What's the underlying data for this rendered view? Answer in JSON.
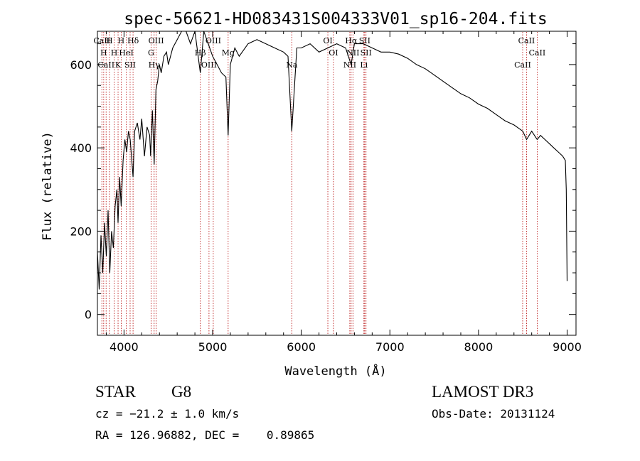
{
  "chart_data": {
    "type": "line",
    "title": "spec-56621-HD083431S004333V01_sp16-204.fits",
    "xlabel": "Wavelength (Å)",
    "ylabel": "Flux (relative)",
    "xlim": [
      3700,
      9100
    ],
    "ylim": [
      -50,
      680
    ],
    "x_ticks": [
      4000,
      5000,
      6000,
      7000,
      8000,
      9000
    ],
    "y_ticks": [
      0,
      200,
      400,
      600
    ],
    "series": [
      {
        "name": "flux",
        "x": [
          3700,
          3720,
          3740,
          3760,
          3780,
          3800,
          3820,
          3840,
          3860,
          3880,
          3900,
          3920,
          3933,
          3950,
          3968,
          3990,
          4010,
          4030,
          4050,
          4070,
          4102,
          4120,
          4150,
          4180,
          4200,
          4230,
          4260,
          4290,
          4300,
          4320,
          4340,
          4360,
          4380,
          4400,
          4420,
          4450,
          4480,
          4500,
          4550,
          4600,
          4650,
          4700,
          4750,
          4800,
          4861,
          4900,
          4950,
          5000,
          5050,
          5100,
          5150,
          5175,
          5200,
          5250,
          5300,
          5400,
          5500,
          5600,
          5700,
          5800,
          5850,
          5893,
          5950,
          6000,
          6100,
          6200,
          6300,
          6400,
          6500,
          6563,
          6600,
          6700,
          6800,
          6900,
          7000,
          7100,
          7200,
          7300,
          7400,
          7500,
          7600,
          7700,
          7800,
          7900,
          8000,
          8100,
          8200,
          8300,
          8400,
          8500,
          8542,
          8600,
          8662,
          8700,
          8800,
          8850,
          8900,
          8950,
          8980,
          8990,
          9000
        ],
        "y": [
          150,
          60,
          190,
          100,
          220,
          140,
          250,
          100,
          200,
          160,
          260,
          300,
          220,
          330,
          260,
          370,
          420,
          390,
          440,
          420,
          330,
          440,
          460,
          420,
          470,
          380,
          450,
          430,
          380,
          490,
          360,
          540,
          560,
          600,
          580,
          620,
          630,
          600,
          640,
          660,
          690,
          700,
          650,
          690,
          580,
          680,
          650,
          620,
          600,
          580,
          570,
          430,
          600,
          640,
          620,
          650,
          660,
          650,
          640,
          630,
          620,
          440,
          640,
          640,
          650,
          630,
          640,
          650,
          640,
          600,
          650,
          650,
          640,
          630,
          630,
          625,
          615,
          600,
          590,
          575,
          560,
          545,
          530,
          520,
          505,
          495,
          480,
          465,
          455,
          440,
          420,
          440,
          420,
          430,
          410,
          400,
          390,
          380,
          370,
          300,
          80
        ]
      }
    ],
    "lines": [
      {
        "x": 3750,
        "label": "CaII"
      },
      {
        "x": 3771,
        "label": "H"
      },
      {
        "x": 3798,
        "label": "CaII"
      },
      {
        "x": 3835,
        "label": "H"
      },
      {
        "x": 3889,
        "label": "H"
      },
      {
        "x": 3933,
        "label": "K"
      },
      {
        "x": 3968,
        "label": "H"
      },
      {
        "x": 4026,
        "label": "HeI"
      },
      {
        "x": 4069,
        "label": "SII"
      },
      {
        "x": 4102,
        "label": "Hδ"
      },
      {
        "x": 4305,
        "label": "G"
      },
      {
        "x": 4340,
        "label": "Hγ"
      },
      {
        "x": 4363,
        "label": "OIII"
      },
      {
        "x": 4861,
        "label": "Hβ"
      },
      {
        "x": 4959,
        "label": "OIII"
      },
      {
        "x": 5007,
        "label": "OIII"
      },
      {
        "x": 5175,
        "label": "Mg"
      },
      {
        "x": 5893,
        "label": "Na"
      },
      {
        "x": 6300,
        "label": "OI"
      },
      {
        "x": 6363,
        "label": "OI"
      },
      {
        "x": 6548,
        "label": "NII"
      },
      {
        "x": 6563,
        "label": "Hα"
      },
      {
        "x": 6583,
        "label": "NII"
      },
      {
        "x": 6707,
        "label": "Li"
      },
      {
        "x": 6716,
        "label": "SII"
      },
      {
        "x": 6731,
        "label": "SII"
      },
      {
        "x": 8498,
        "label": "CaII"
      },
      {
        "x": 8542,
        "label": "CaII"
      },
      {
        "x": 8662,
        "label": "CaII"
      }
    ]
  },
  "info": {
    "class_label": "STAR",
    "subclass_label": "G8",
    "cz": "cz = −21.2 ± 1.0 km/s",
    "coords": "RA = 126.96882, DEC =    0.89865",
    "survey": "LAMOST DR3",
    "obs_date": "Obs-Date: 20131124"
  }
}
